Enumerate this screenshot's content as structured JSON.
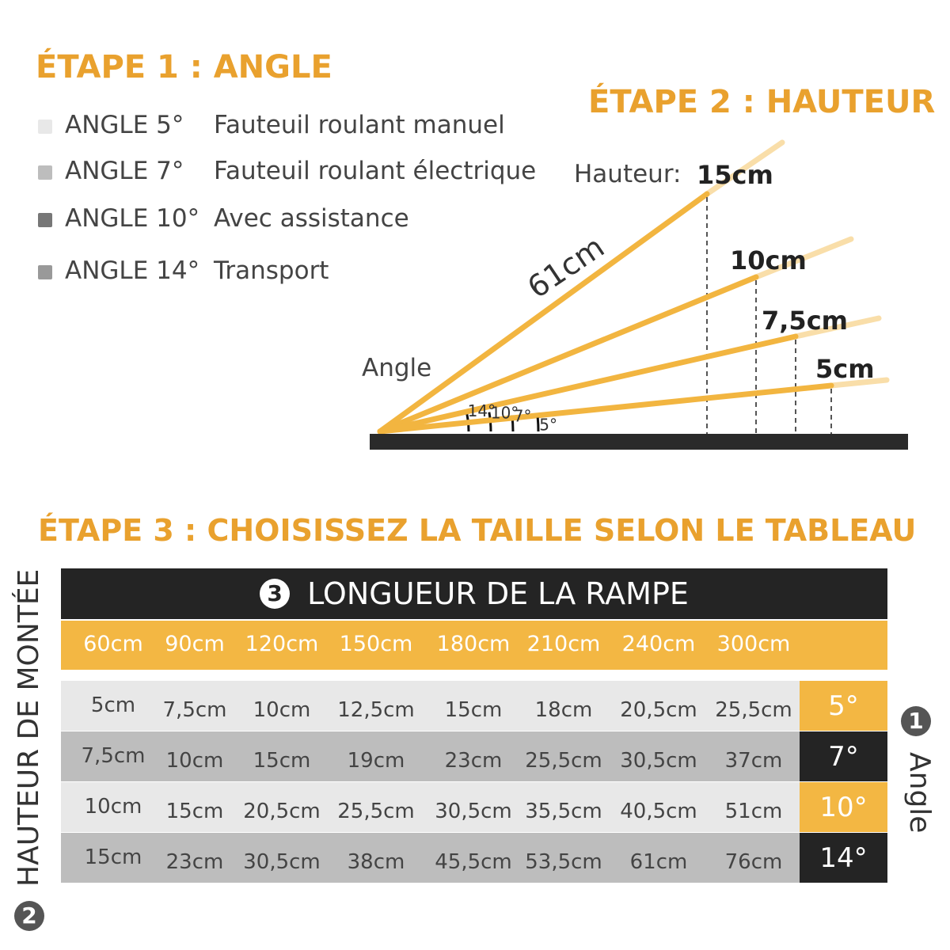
{
  "step1": {
    "title": "ÉTAPE 1 : ANGLE",
    "legend": [
      {
        "angle": "ANGLE 5°",
        "use": "Fauteuil roulant manuel",
        "color": "#e8e8e8"
      },
      {
        "angle": "ANGLE 7°",
        "use": "Fauteuil roulant électrique",
        "color": "#bdbdbd"
      },
      {
        "angle": "ANGLE 10°",
        "use": "Avec assistance",
        "color": "#777777"
      },
      {
        "angle": "ANGLE 14°",
        "use": "Transport",
        "color": "#999999"
      }
    ]
  },
  "step2": {
    "title": "ÉTAPE 2 : HAUTEUR",
    "height_label": "Hauteur:",
    "angle_label": "Angle",
    "ramp_length": "61cm",
    "ramps": [
      {
        "angle": "14°",
        "height": "15cm"
      },
      {
        "angle": "10°",
        "height": "10cm"
      },
      {
        "angle": "7°",
        "height": "7,5cm"
      },
      {
        "angle": "5°",
        "height": "5cm"
      }
    ],
    "ramp_color": "#f2b540"
  },
  "step3": {
    "title": "ÉTAPE 3 : CHOISISSEZ LA TAILLE SELON LE TABLEAU",
    "table_header_num": "3",
    "table_header": "LONGUEUR DE LA RAMPE",
    "lengths": [
      "60cm",
      "90cm",
      "120cm",
      "150cm",
      "180cm",
      "210cm",
      "240cm",
      "300cm"
    ],
    "rows": [
      {
        "cells": [
          "5cm",
          "7,5cm",
          "10cm",
          "12,5cm",
          "15cm",
          "18cm",
          "20,5cm",
          "25,5cm"
        ],
        "angle": "5°"
      },
      {
        "cells": [
          "7,5cm",
          "10cm",
          "15cm",
          "19cm",
          "23cm",
          "25,5cm",
          "30,5cm",
          "37cm"
        ],
        "angle": "7°"
      },
      {
        "cells": [
          "10cm",
          "15cm",
          "20,5cm",
          "25,5cm",
          "30,5cm",
          "35,5cm",
          "40,5cm",
          "51cm"
        ],
        "angle": "10°"
      },
      {
        "cells": [
          "15cm",
          "23cm",
          "30,5cm",
          "38cm",
          "45,5cm",
          "53,5cm",
          "61cm",
          "76cm"
        ],
        "angle": "14°"
      }
    ],
    "height_axis_num": "2",
    "height_axis_label": "HAUTEUR DE MONTÉE",
    "angle_axis_num": "1",
    "angle_axis_label": "Angle"
  }
}
